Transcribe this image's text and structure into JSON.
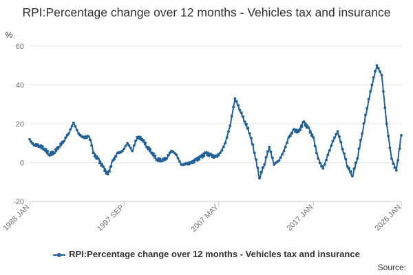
{
  "chart_data": {
    "type": "line",
    "title": "RPI:Percentage change over 12 months - Vehicles tax and insurance",
    "ylabel": "%",
    "xlabel": "",
    "ylim": [
      -20,
      60
    ],
    "yticks": [
      -20,
      0,
      20,
      40,
      60
    ],
    "grid": true,
    "x_start": "1988 JAN",
    "x_end": "2026 JAN",
    "xticks": [
      {
        "label": "1988 JAN",
        "t": 1988.0
      },
      {
        "label": "1997 SEP",
        "t": 1997.67
      },
      {
        "label": "2007 MAY",
        "t": 2007.33
      },
      {
        "label": "2017 JAN",
        "t": 2017.0
      },
      {
        "label": "2026 JAN",
        "t": 2026.0
      }
    ],
    "legend_position": "bottom",
    "series": [
      {
        "name": "RPI:Percentage change over 12 months - Vehicles tax and insurance",
        "color": "#206095",
        "t": [
          1988.0,
          1988.25,
          1988.5,
          1989.0,
          1989.5,
          1990.0,
          1990.5,
          1991.0,
          1991.5,
          1992.0,
          1992.5,
          1993.0,
          1993.5,
          1994.0,
          1994.25,
          1994.5,
          1995.0,
          1995.5,
          1996.0,
          1996.5,
          1997.0,
          1997.5,
          1998.0,
          1998.5,
          1999.0,
          1999.5,
          2000.0,
          2000.5,
          2001.0,
          2001.5,
          2002.0,
          2002.5,
          2003.0,
          2003.5,
          2004.0,
          2004.5,
          2005.0,
          2005.5,
          2006.0,
          2006.5,
          2007.0,
          2007.5,
          2008.0,
          2008.5,
          2009.0,
          2009.5,
          2010.0,
          2010.5,
          2011.0,
          2011.5,
          2012.0,
          2012.5,
          2013.0,
          2013.5,
          2014.0,
          2014.5,
          2015.0,
          2015.5,
          2016.0,
          2016.5,
          2017.0,
          2017.5,
          2018.0,
          2018.5,
          2019.0,
          2019.5,
          2020.0,
          2020.5,
          2021.0,
          2021.5,
          2022.0,
          2022.5,
          2023.0,
          2023.5,
          2024.0,
          2024.5,
          2025.0,
          2025.5,
          2026.0
        ],
        "values": [
          12,
          9.5,
          9,
          8.5,
          7,
          4,
          5,
          8,
          11,
          15,
          20.5,
          15,
          13,
          13.5,
          12,
          5,
          2,
          -2,
          -6,
          1,
          5,
          6,
          10,
          6,
          13,
          12,
          8,
          5,
          1.5,
          1,
          2,
          6,
          4,
          -1,
          -0.5,
          0,
          1.5,
          3,
          5,
          4,
          3,
          5,
          10,
          19,
          33,
          27,
          21,
          15,
          5,
          -8,
          -1,
          8,
          -1,
          1,
          6,
          13,
          17,
          16,
          21,
          18,
          13,
          2,
          -3,
          4,
          11,
          16,
          7,
          -2,
          -7,
          2,
          15,
          28,
          40,
          50,
          45,
          20,
          2,
          -4,
          14
        ]
      }
    ]
  },
  "source_label": "Source:"
}
